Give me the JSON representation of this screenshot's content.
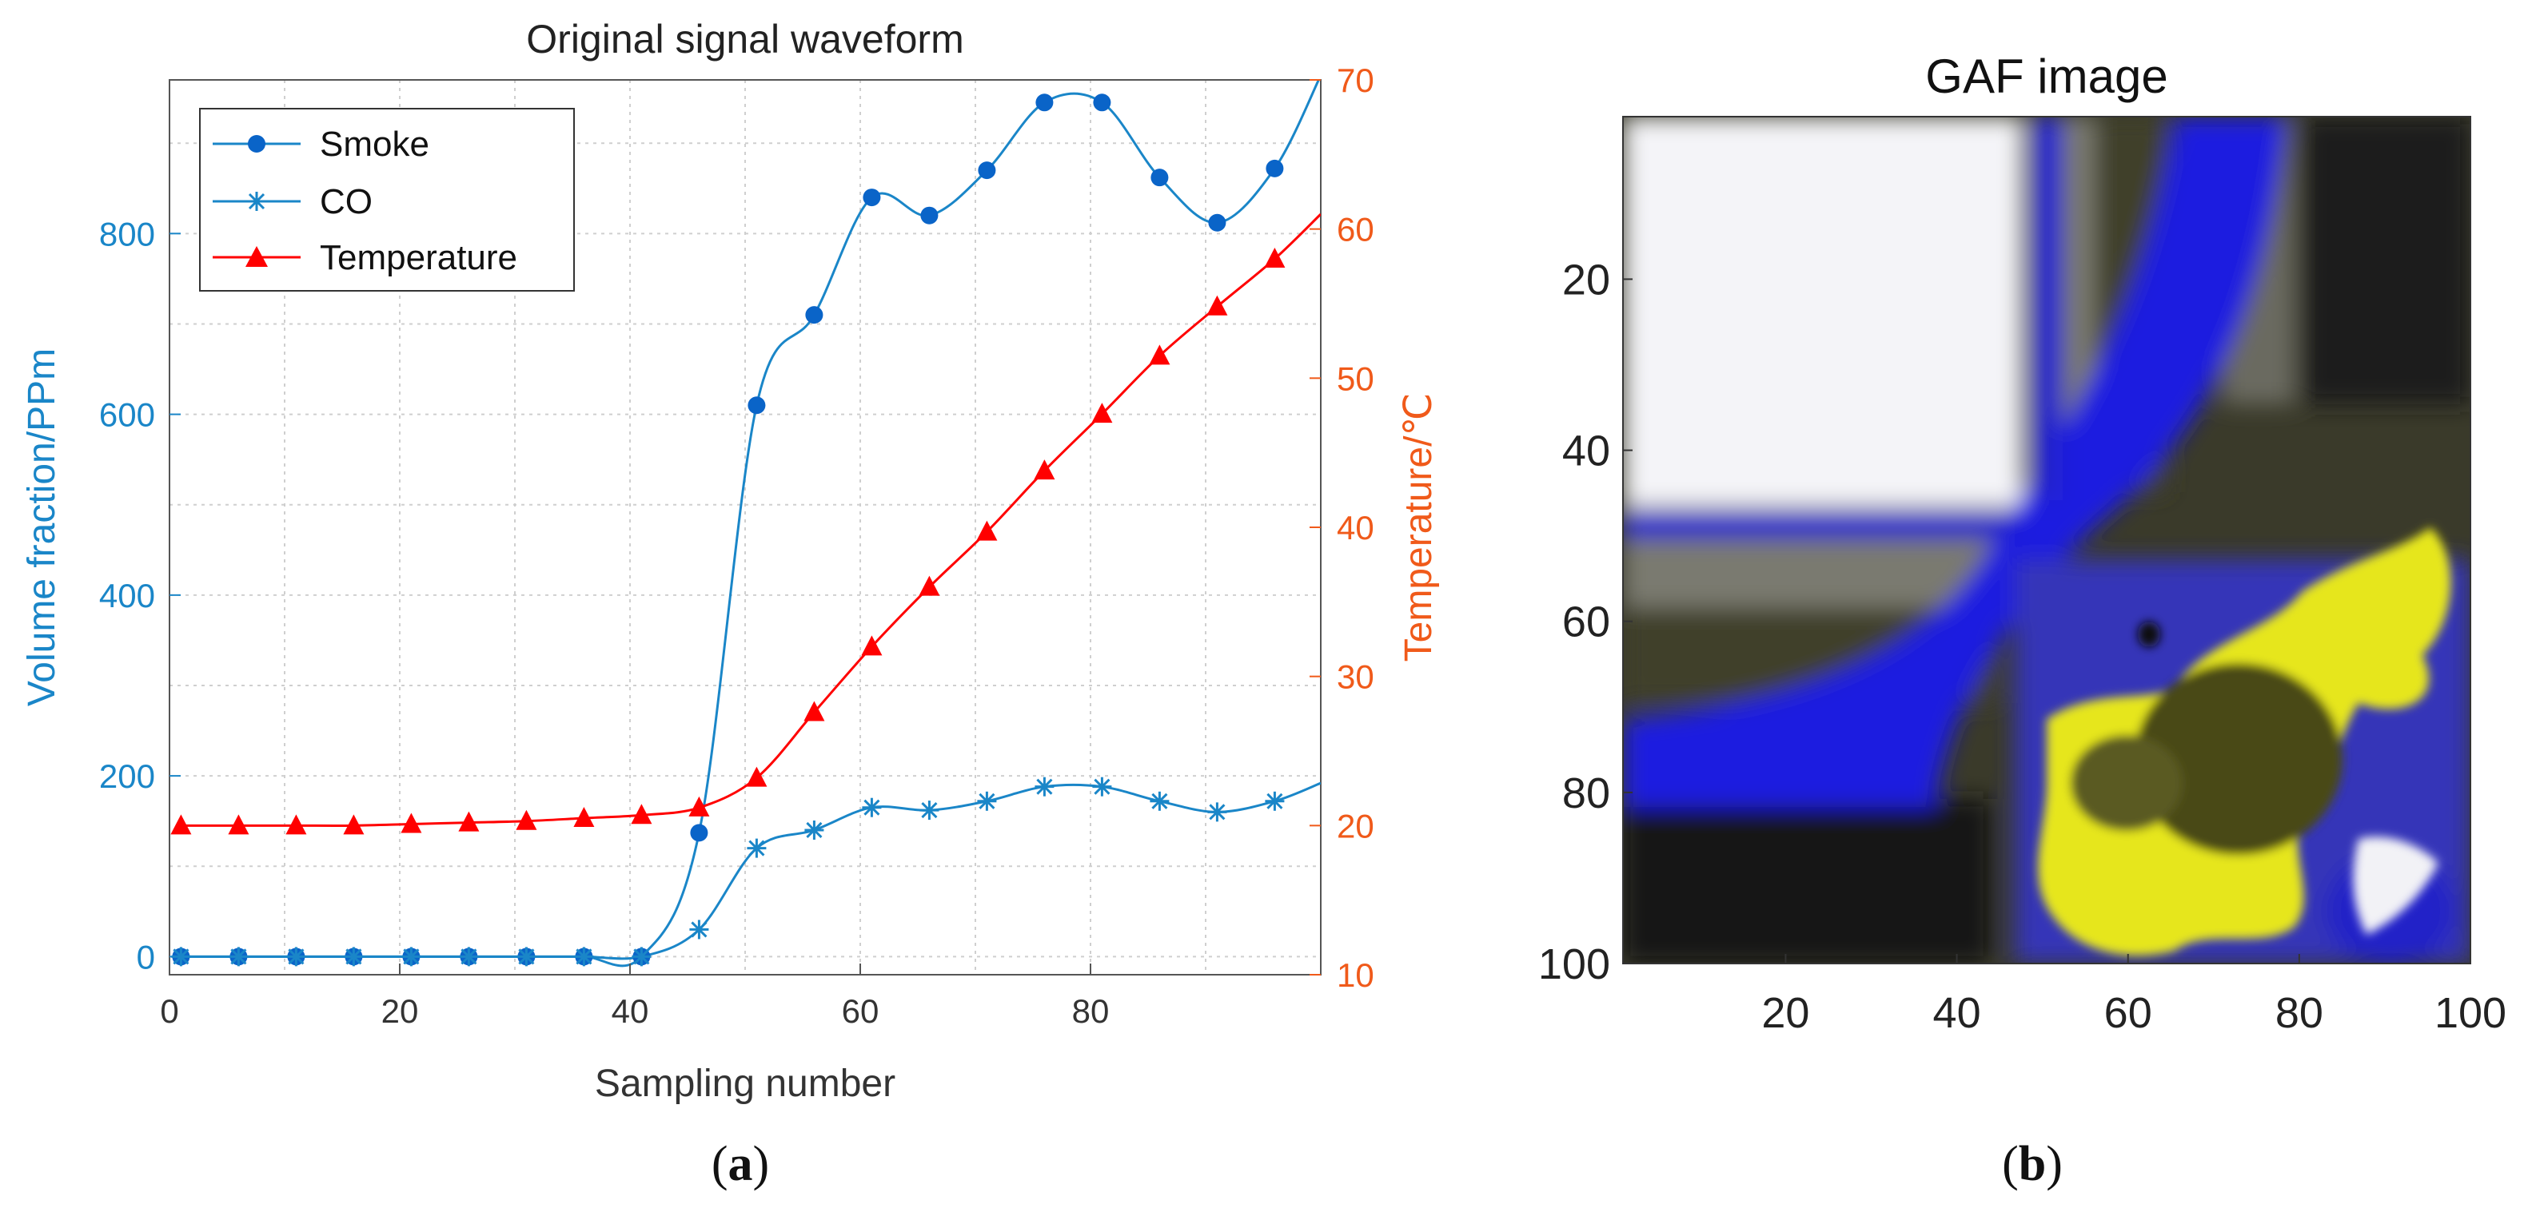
{
  "chart_data": [
    {
      "type": "line",
      "title": "Original signal waveform",
      "xlabel": "Sampling number",
      "ylabel_left": "Volume fraction/PPm",
      "ylabel_right": "Temperature/℃",
      "xlim": [
        0,
        100
      ],
      "ylim_left": [
        -20,
        970
      ],
      "ylim_right": [
        10,
        70
      ],
      "x_ticks": [
        "0",
        "20",
        "40",
        "60",
        "80"
      ],
      "y_left_ticks": [
        "0",
        "200",
        "400",
        "600",
        "800"
      ],
      "y_right_ticks": [
        "10",
        "20",
        "30",
        "40",
        "50",
        "60",
        "70"
      ],
      "grid": true,
      "legend_position": "top-left",
      "series": [
        {
          "name": "Smoke",
          "axis": "left",
          "marker": "circle",
          "color": "#0a64c8",
          "line_color": "#1a86c8",
          "x": [
            1,
            6,
            11,
            16,
            21,
            26,
            31,
            36,
            41,
            46,
            51,
            56,
            61,
            66,
            71,
            76,
            81,
            86,
            91,
            96,
            100
          ],
          "values": [
            0,
            0,
            0,
            0,
            0,
            0,
            0,
            0,
            0,
            137,
            610,
            710,
            840,
            820,
            870,
            945,
            945,
            862,
            812,
            872,
            975
          ]
        },
        {
          "name": "CO",
          "axis": "left",
          "marker": "asterisk",
          "color": "#1a86c8",
          "line_color": "#1a86c8",
          "x": [
            1,
            6,
            11,
            16,
            21,
            26,
            31,
            36,
            41,
            46,
            51,
            56,
            61,
            66,
            71,
            76,
            81,
            86,
            91,
            96,
            100
          ],
          "values": [
            0,
            0,
            0,
            0,
            0,
            0,
            0,
            0,
            0,
            30,
            120,
            140,
            165,
            162,
            172,
            188,
            188,
            172,
            160,
            172,
            192
          ]
        },
        {
          "name": "Temperature",
          "axis": "right",
          "marker": "triangle",
          "color": "#ff0000",
          "line_color": "#ff0000",
          "x": [
            1,
            6,
            11,
            16,
            21,
            26,
            31,
            36,
            41,
            46,
            51,
            56,
            61,
            66,
            71,
            76,
            81,
            86,
            91,
            96,
            100
          ],
          "values": [
            20,
            20,
            20,
            20,
            20.1,
            20.2,
            20.3,
            20.5,
            20.7,
            21.2,
            23.2,
            27.6,
            32,
            36,
            39.7,
            43.8,
            47.6,
            51.5,
            54.8,
            58,
            61
          ]
        }
      ]
    },
    {
      "type": "heatmap",
      "title": "GAF image",
      "x_ticks": [
        "20",
        "40",
        "60",
        "80",
        "100"
      ],
      "y_ticks": [
        "20",
        "40",
        "60",
        "80",
        "100"
      ],
      "xlim": [
        1,
        100
      ],
      "ylim": [
        1,
        100
      ],
      "colors": {
        "white": "#f4f4f8",
        "blue": "#1a1ae0",
        "yellow": "#e6e61a",
        "olive": "#5a5a14",
        "dark": "#101018",
        "gray": "#8c8c94"
      }
    }
  ],
  "captions": {
    "a_open": "(",
    "a_letter": "a",
    "a_close": ")",
    "b_open": "(",
    "b_letter": "b",
    "b_close": ")"
  }
}
